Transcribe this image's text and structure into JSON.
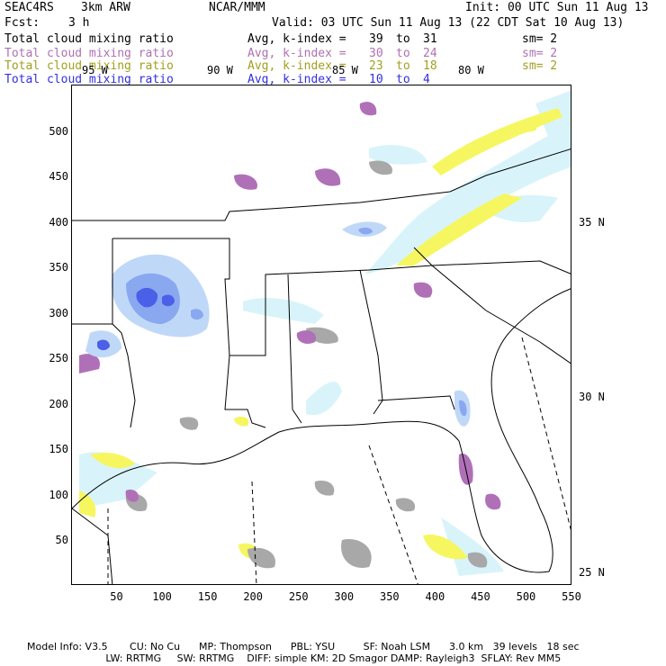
{
  "header": {
    "project": "SEAC4RS",
    "model": "3km ARW",
    "org": "NCAR/MMM",
    "init": "Init: 00 UTC Sun 11 Aug 13",
    "fcst_label": "Fcst:",
    "fcst_value": "3 h",
    "valid": "Valid: 03 UTC Sun 11 Aug 13 (22 CDT Sat 10 Aug 13)"
  },
  "fields": [
    {
      "name": "Total cloud mixing ratio",
      "stat": "Avg, k-index =",
      "from": "39",
      "to_word": "to",
      "to": "31",
      "sm": "sm= 2",
      "color": "#000000"
    },
    {
      "name": "Total cloud mixing ratio",
      "stat": "Avg, k-index =",
      "from": "30",
      "to_word": "to",
      "to": "24",
      "sm": "sm= 2",
      "color": "#b070b0"
    },
    {
      "name": "Total cloud mixing ratio",
      "stat": "Avg, k-index =",
      "from": "23",
      "to_word": "to",
      "to": "18",
      "sm": "sm= 2",
      "color": "#a0a020"
    },
    {
      "name": "Total cloud mixing ratio",
      "stat": "Avg, k-index =",
      "from": "10",
      "to_word": "to",
      "to": "4",
      "sm": "",
      "color": "#3030e0"
    }
  ],
  "axes": {
    "x_ticks": [
      "50",
      "100",
      "150",
      "200",
      "250",
      "300",
      "350",
      "400",
      "450",
      "500",
      "550"
    ],
    "y_ticks": [
      "500",
      "450",
      "400",
      "350",
      "300",
      "250",
      "200",
      "150",
      "100",
      "50"
    ],
    "lat_labels": [
      "35 N",
      "30 N",
      "25 N"
    ],
    "lon_labels": [
      "95 W",
      "90 W",
      "85 W",
      "80 W"
    ]
  },
  "footer": {
    "line1": "Model Info: V3.5       CU: No Cu      MP: Thompson      PBL: YSU         SF: Noah LSM      3.0 km   39 levels   18 sec",
    "line2": "                         LW: RRTMG     SW: RRTMG    DIFF: simple KM: 2D Smagor DAMP: Rayleigh3  SFLAY: Rev MM5"
  },
  "colors": {
    "gray": "#a8a8a8",
    "purple": "#b070b8",
    "yellow": "#f6f660",
    "lightblue": "#d8f4fa",
    "blue1": "#c0d8f8",
    "blue2": "#8aa8f0",
    "blue3": "#4a60e8"
  }
}
